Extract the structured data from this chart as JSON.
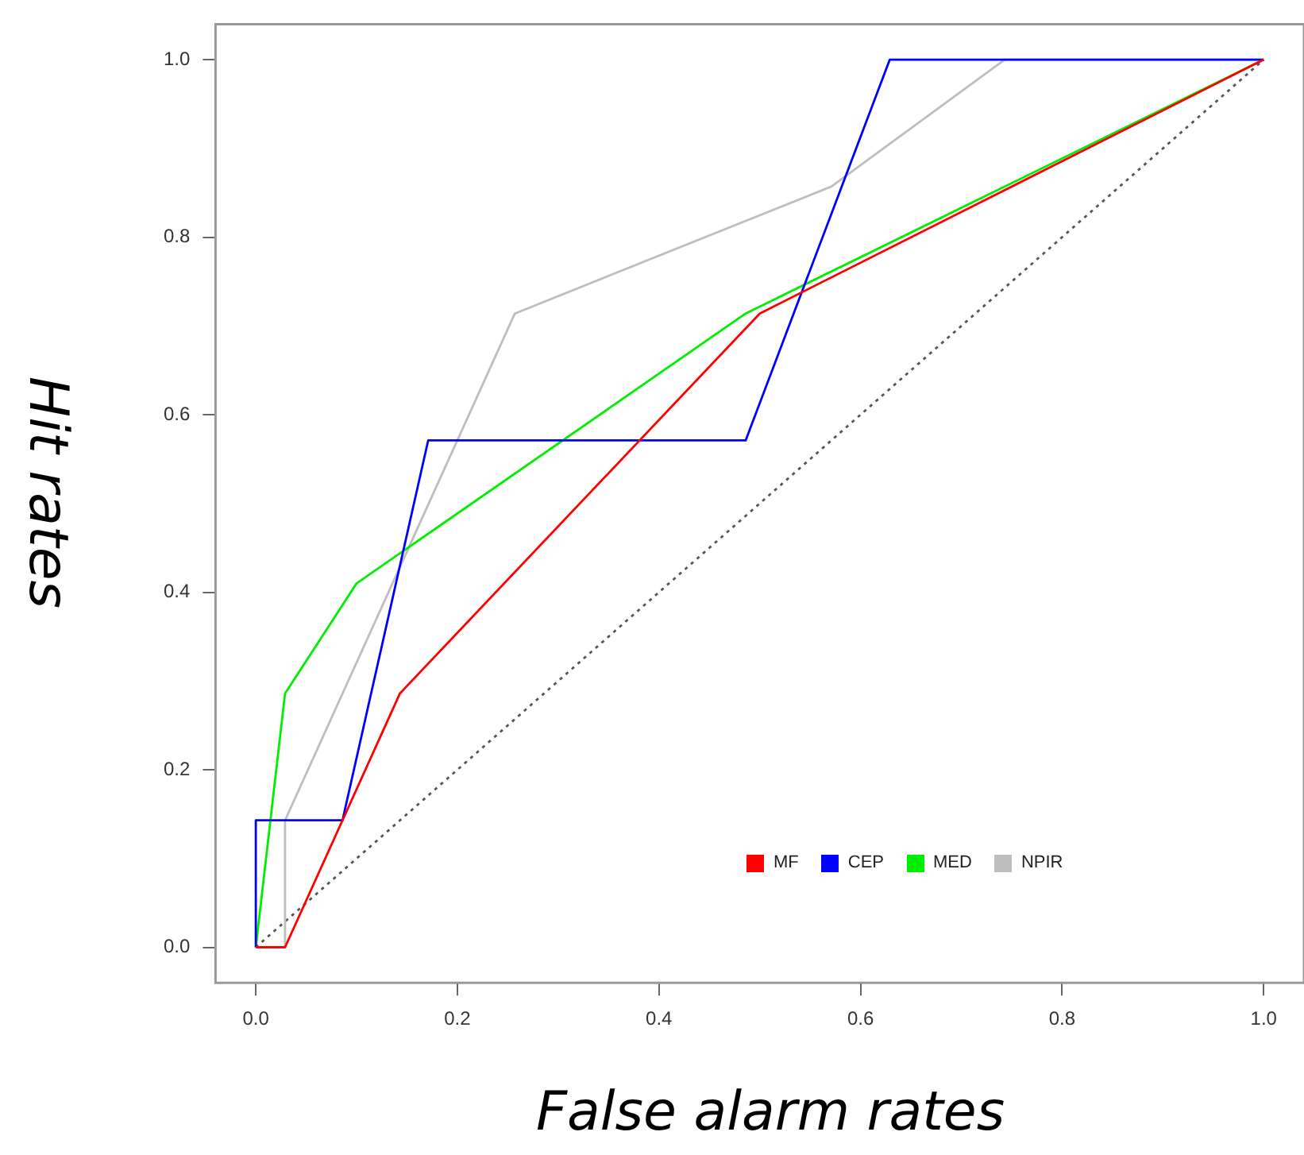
{
  "chart_data": {
    "type": "line",
    "xlabel": "False alarm rates",
    "ylabel": "Hit rates",
    "xlim": [
      -0.04,
      1.04
    ],
    "ylim": [
      -0.04,
      1.04
    ],
    "xticks": [
      {
        "value": 0,
        "label": "0.0"
      },
      {
        "value": 0.2,
        "label": "0.2"
      },
      {
        "value": 0.4,
        "label": "0.4"
      },
      {
        "value": 0.6,
        "label": "0.6"
      },
      {
        "value": 0.8,
        "label": "0.8"
      },
      {
        "value": 1,
        "label": "1.0"
      }
    ],
    "yticks": [
      {
        "value": 0,
        "label": "0.0"
      },
      {
        "value": 0.2,
        "label": "0.2"
      },
      {
        "value": 0.4,
        "label": "0.4"
      },
      {
        "value": 0.6,
        "label": "0.6"
      },
      {
        "value": 0.8,
        "label": "0.8"
      },
      {
        "value": 1,
        "label": "1.0"
      }
    ],
    "grid": false,
    "legend": "bottom right",
    "marker": "none",
    "series": [
      {
        "name": "MF",
        "color": "#ff0000",
        "x": [
          0,
          0.029,
          0.143,
          0.5,
          1
        ],
        "values": [
          0,
          0,
          0.286,
          0.714,
          1
        ]
      },
      {
        "name": "CEP",
        "color": "#0000ff",
        "x": [
          0,
          0,
          0.086,
          0.171,
          0.486,
          0.629,
          1
        ],
        "values": [
          0,
          0.143,
          0.143,
          0.571,
          0.571,
          1,
          1
        ]
      },
      {
        "name": "MED",
        "color": "#00ee00",
        "x": [
          0,
          0.029,
          0.1,
          0.486,
          1
        ],
        "values": [
          0,
          0.286,
          0.41,
          0.714,
          1
        ]
      },
      {
        "name": "NPIR",
        "color": "#bebebe",
        "x": [
          0,
          0.029,
          0.029,
          0.257,
          0.571,
          0.743,
          1
        ],
        "values": [
          0,
          0,
          0.143,
          0.714,
          0.857,
          1,
          1
        ]
      },
      {
        "color": "#555555",
        "line_style": "dotted",
        "x": [
          0,
          1
        ],
        "values": [
          0,
          1
        ]
      }
    ]
  }
}
